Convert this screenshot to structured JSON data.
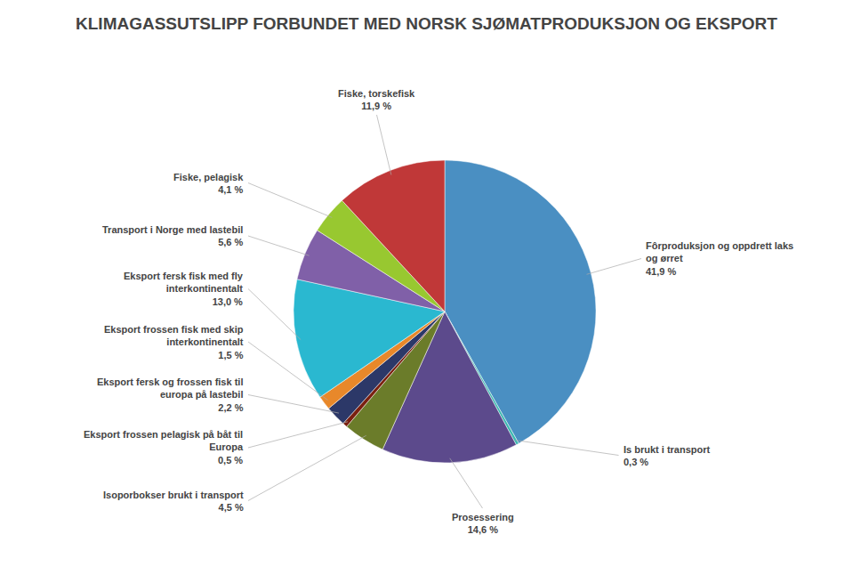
{
  "chart_data": {
    "type": "pie",
    "title": "KLIMAGASSUTSLIPP FORBUNDET MED NORSK SJØMATPRODUKSJON OG EKSPORT",
    "categories": [
      "Fôrproduksjon og oppdrett laks\nog ørret\n41,9 %",
      "Is brukt i transport\n0,3 %",
      "Prosessering\n14,6 %",
      "Isoporbokser brukt i transport\n4,5 %",
      "Eksport frossen pelagisk på båt til\nEuropa\n0,5 %",
      "Eksport fersk og frossen fisk til\neuropa på lastebil\n2,2 %",
      "Eksport frossen fisk med skip\ninterkontinentalt\n1,5 %",
      "Eksport fersk fisk med fly\ninterkontinentalt\n13,0 %",
      "Transport i Norge med lastebil\n5,6 %",
      "Fiske, pelagisk\n4,1 %",
      "Fiske, torskefisk\n11,9 %"
    ],
    "values": [
      41.9,
      0.3,
      14.6,
      4.5,
      0.5,
      2.2,
      1.5,
      13.0,
      5.6,
      4.1,
      11.9
    ],
    "colors": [
      "#4a8fc2",
      "#3ab8b0",
      "#5c4a8c",
      "#6b7c2a",
      "#7a2010",
      "#2c3868",
      "#e8882a",
      "#2ab8d0",
      "#8060a8",
      "#98c830",
      "#c03838"
    ]
  }
}
